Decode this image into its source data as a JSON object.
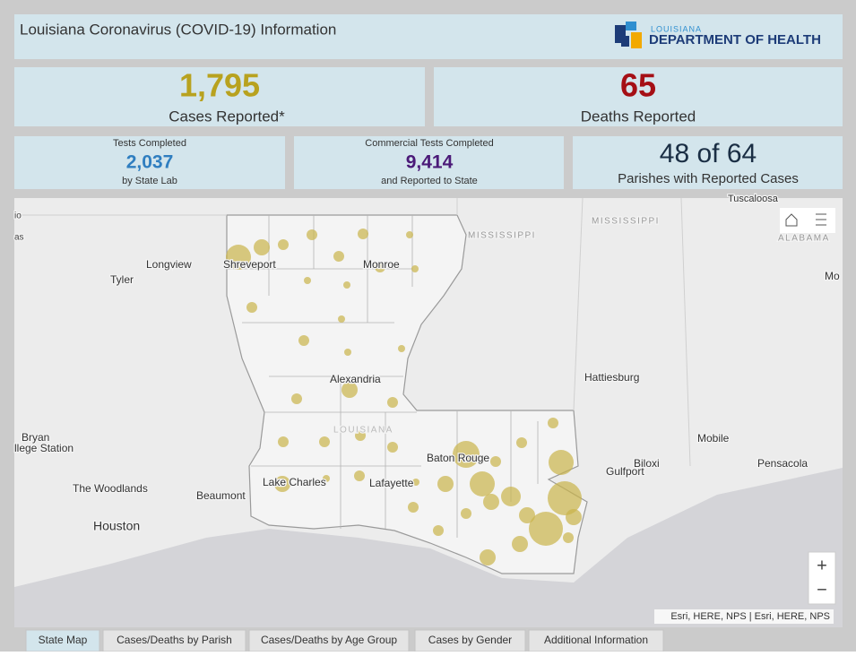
{
  "header": {
    "title": "Louisiana Coronavirus (COVID-19) Information",
    "logo": {
      "line1": "LOUISIANA",
      "line2": "DEPARTMENT OF HEALTH"
    }
  },
  "stats": {
    "cases": {
      "value": "1,795",
      "label": "Cases Reported*"
    },
    "deaths": {
      "value": "65",
      "label": "Deaths Reported"
    },
    "state_tests": {
      "title": "Tests Completed",
      "value": "2,037",
      "note": "by State Lab"
    },
    "commercial_tests": {
      "title": "Commercial Tests Completed",
      "value": "9,414",
      "note": "and Reported to State"
    },
    "parishes": {
      "value": "48 of 64",
      "label": "Parishes with Reported Cases"
    }
  },
  "map": {
    "labels": [
      "io",
      "as",
      "Longview",
      "Tyler",
      "Shreveport",
      "Monroe",
      "MISSISSIPPI",
      "MISSISSIPPI",
      "Tuscaloosa",
      "ALABAMA",
      "Mo",
      "Alexandria",
      "Hattiesburg",
      "LOUISIANA",
      "Bryan",
      "llege Station",
      "Mobile",
      "Pensacola",
      "Baton Rouge",
      "Gulfport",
      "Biloxi",
      "Lake Charles",
      "Lafayette",
      "The Woodlands",
      "Beaumont",
      "Houston"
    ],
    "zoom_in": "+",
    "zoom_out": "−",
    "attribution": "Esri, HERE, NPS | Esri, HERE, NPS"
  },
  "tabs": [
    "State Map",
    "Cases/Deaths by Parish",
    "Cases/Deaths by Age Group",
    "Cases by Gender",
    "Additional Information"
  ]
}
